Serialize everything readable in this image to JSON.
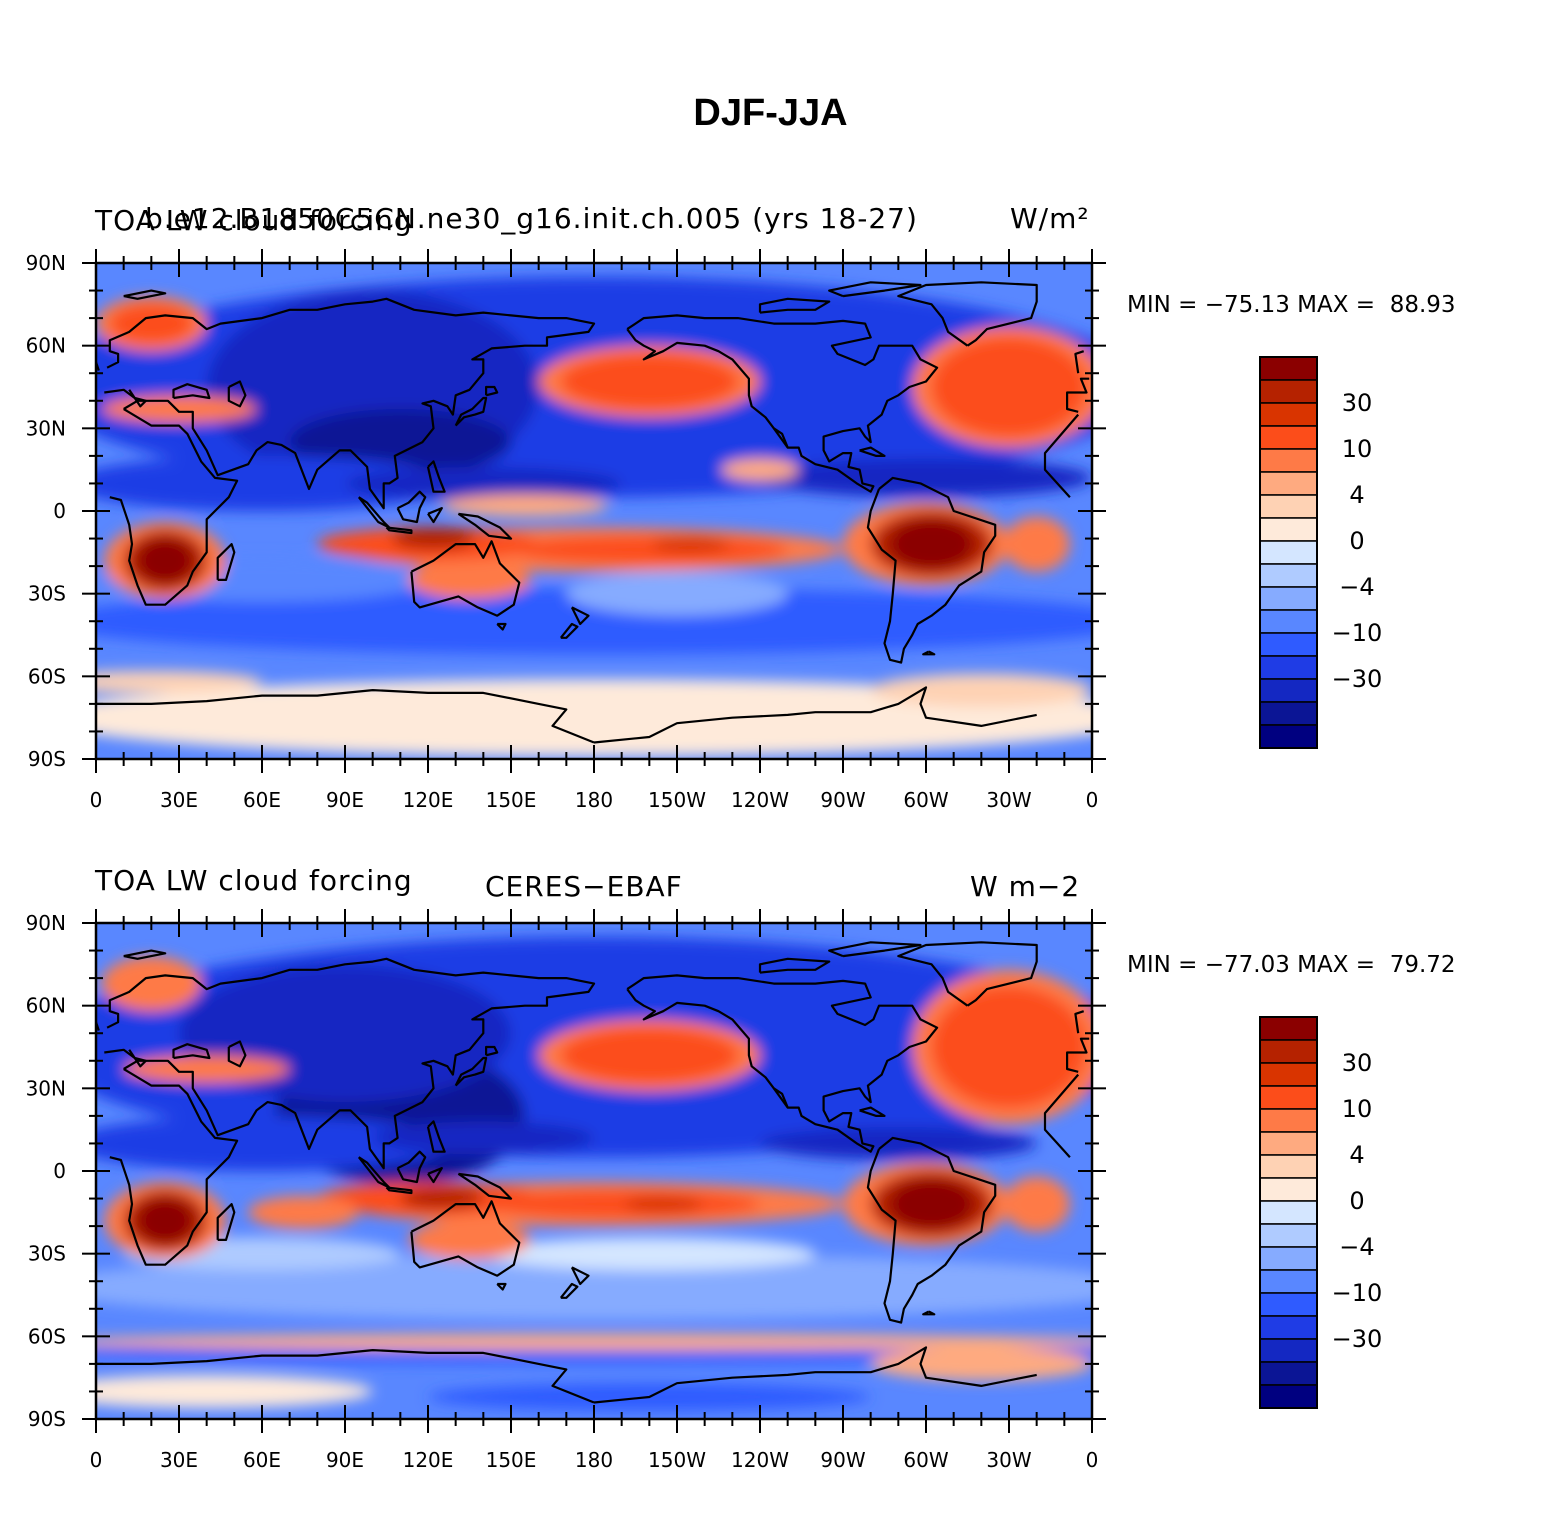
{
  "title": "DJF-JJA",
  "colorbar": {
    "colors": [
      "#8b0000",
      "#b52200",
      "#d93400",
      "#fc4d1a",
      "#fe7a47",
      "#feaa80",
      "#fed2b4",
      "#feeada",
      "#d4e6ff",
      "#afcbff",
      "#86abff",
      "#5987ff",
      "#2f5bff",
      "#1f3ce5",
      "#1428c2",
      "#0b1595",
      "#000080"
    ],
    "tick_labels": [
      "30",
      "10",
      "4",
      "0",
      "−4",
      "−10",
      "−30"
    ]
  },
  "axes": {
    "lat_labels": [
      "90N",
      "60N",
      "30N",
      "0",
      "30S",
      "60S",
      "90S"
    ],
    "lon_labels": [
      "0",
      "30E",
      "60E",
      "90E",
      "120E",
      "150E",
      "180",
      "150W",
      "120W",
      "90W",
      "60W",
      "30W",
      "0"
    ]
  },
  "panels": [
    {
      "left_title": "TOA LW cloud forcing",
      "center_title": "b.e12.B1850C5CN.ne30_g16.init.ch.005 (yrs 18-27)",
      "units": "W/m²",
      "stats": "MIN = −75.13 MAX =  88.93"
    },
    {
      "left_title": "TOA LW cloud forcing",
      "center_title": "CERES−EBAF",
      "units": "W m−2",
      "stats": "MIN = −77.03 MAX =  79.72"
    }
  ]
}
